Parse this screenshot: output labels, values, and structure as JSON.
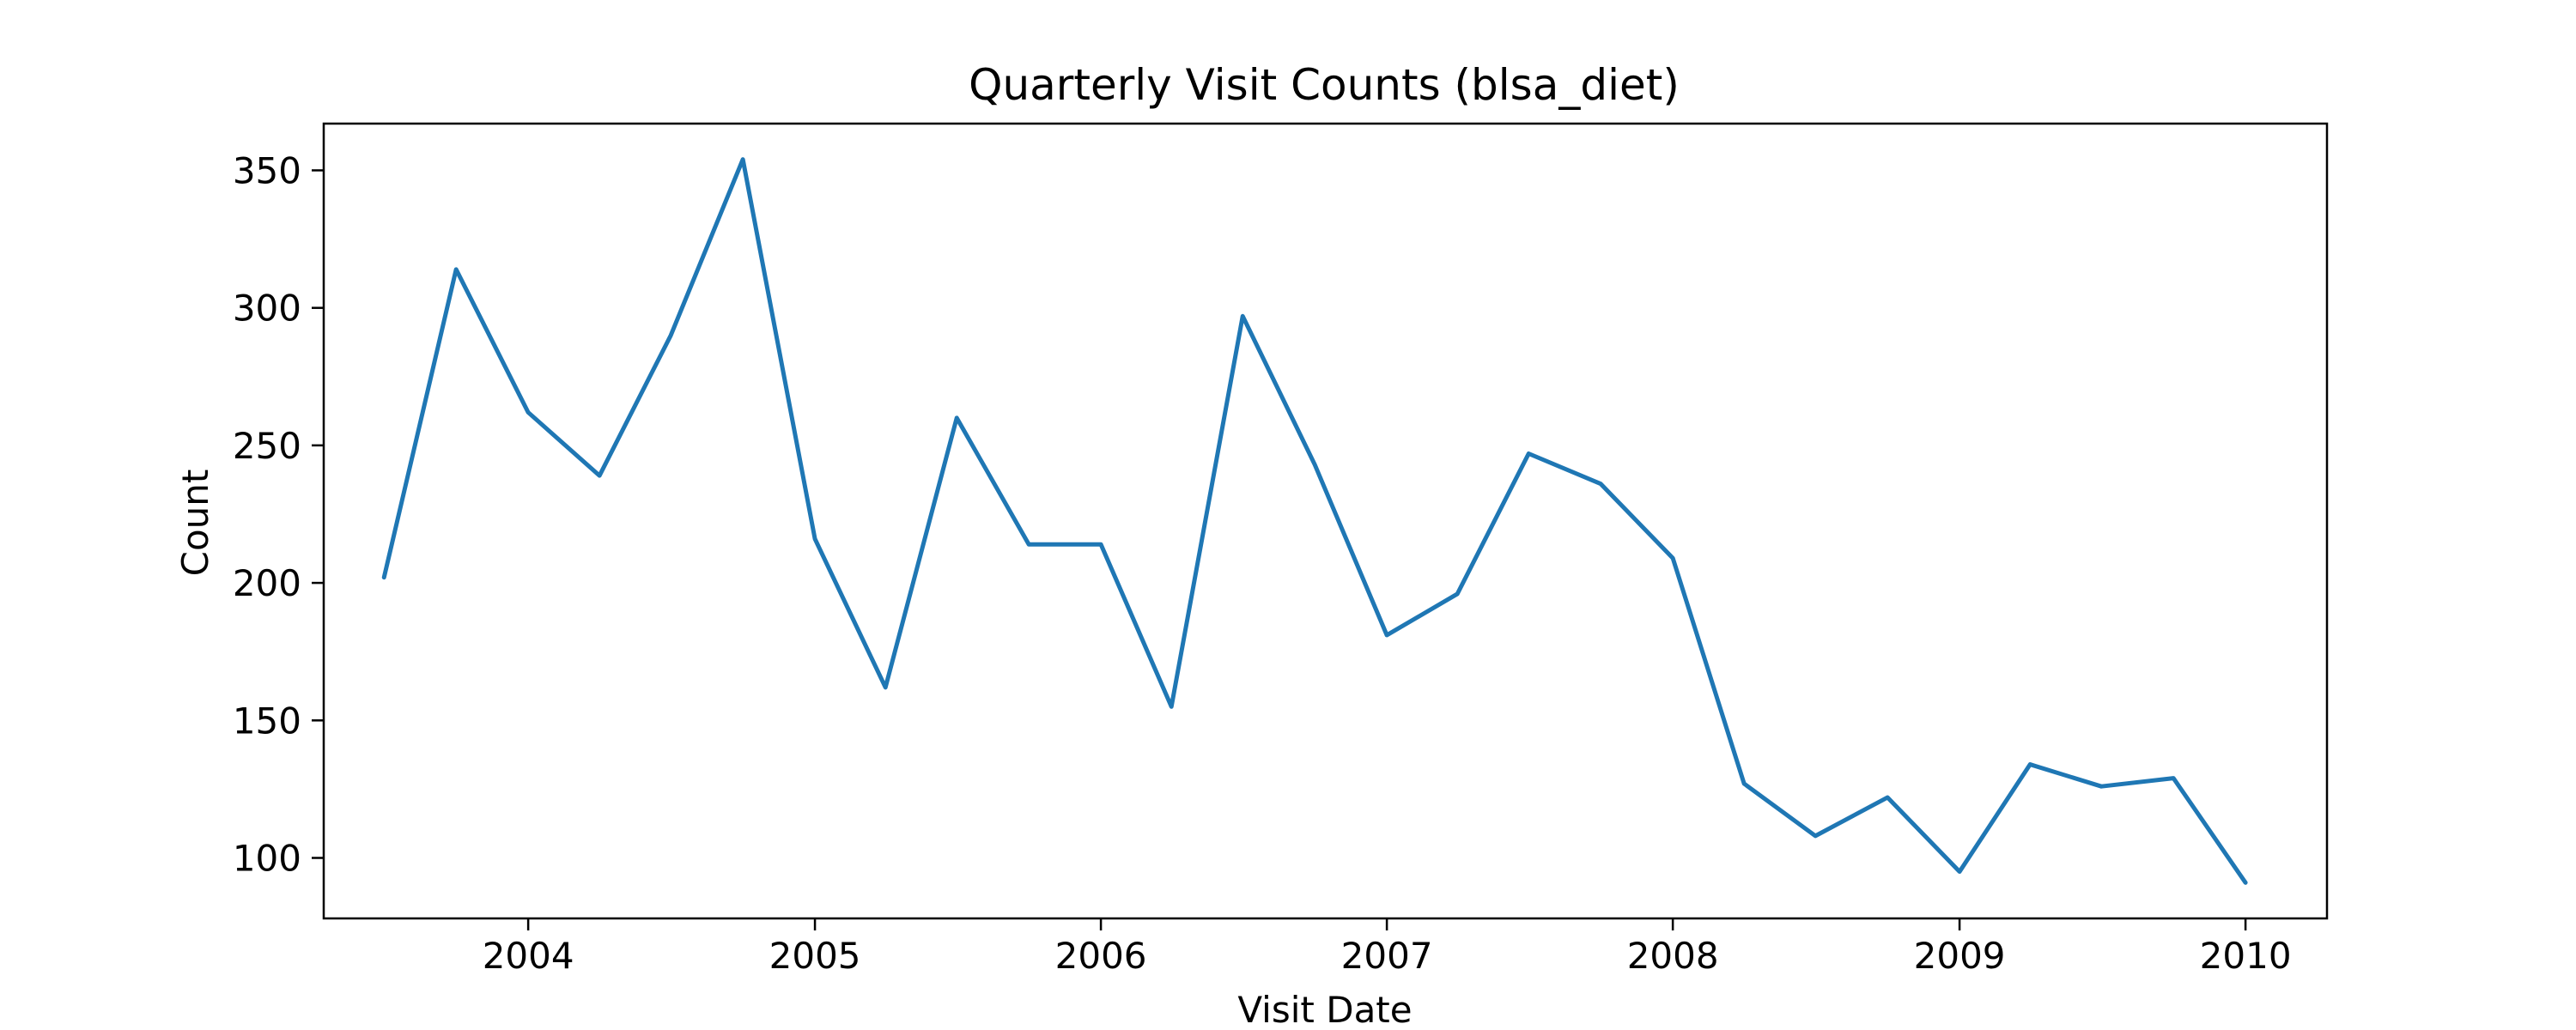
{
  "chart_data": {
    "type": "line",
    "title": "Quarterly Visit Counts (blsa_diet)",
    "xlabel": "Visit Date",
    "ylabel": "Count",
    "x_ticks": [
      "2004",
      "2005",
      "2006",
      "2007",
      "2008",
      "2009",
      "2010"
    ],
    "y_ticks": [
      "100",
      "150",
      "200",
      "250",
      "300",
      "350"
    ],
    "xlim": [
      "2003-04-15",
      "2010-04-15"
    ],
    "ylim": [
      78,
      367
    ],
    "grid": false,
    "legend": "none",
    "series": [
      {
        "color": "#1f77b4",
        "points": [
          [
            "2003-07-01",
            202
          ],
          [
            "2003-10-01",
            314
          ],
          [
            "2004-01-01",
            262
          ],
          [
            "2004-04-01",
            239
          ],
          [
            "2004-07-01",
            290
          ],
          [
            "2004-10-01",
            354
          ],
          [
            "2005-01-01",
            216
          ],
          [
            "2005-04-01",
            162
          ],
          [
            "2005-07-01",
            260
          ],
          [
            "2005-10-01",
            214
          ],
          [
            "2006-01-01",
            214
          ],
          [
            "2006-04-01",
            155
          ],
          [
            "2006-07-01",
            297
          ],
          [
            "2006-10-01",
            243
          ],
          [
            "2007-01-01",
            181
          ],
          [
            "2007-04-01",
            196
          ],
          [
            "2007-07-01",
            247
          ],
          [
            "2007-10-01",
            236
          ],
          [
            "2008-01-01",
            209
          ],
          [
            "2008-04-01",
            127
          ],
          [
            "2008-07-01",
            108
          ],
          [
            "2008-10-01",
            122
          ],
          [
            "2009-01-01",
            95
          ],
          [
            "2009-04-01",
            134
          ],
          [
            "2009-07-01",
            126
          ],
          [
            "2009-10-01",
            129
          ],
          [
            "2010-01-01",
            91
          ]
        ]
      }
    ]
  }
}
